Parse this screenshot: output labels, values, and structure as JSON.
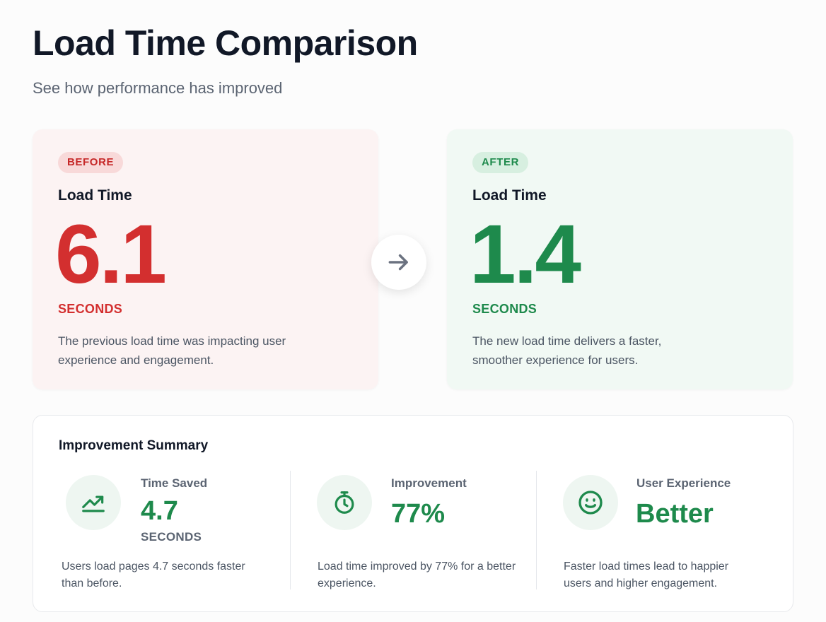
{
  "header": {
    "title": "Load Time Comparison",
    "subtitle": "See how performance has improved"
  },
  "before": {
    "badge": "BEFORE",
    "label": "Load Time",
    "value": "6.1",
    "unit": "SECONDS",
    "description": "The previous load time was impacting user experience and engagement.",
    "accent_color": "#d32f2f"
  },
  "after": {
    "badge": "AFTER",
    "label": "Load Time",
    "value": "1.4",
    "unit": "SECONDS",
    "description": "The new load time delivers a faster, smoother experience for users.",
    "accent_color": "#1e8a4c"
  },
  "transition_icon": "arrow-right-icon",
  "summary": {
    "title": "Improvement Summary",
    "metrics": [
      {
        "icon": "trending-up-icon",
        "label": "Time Saved",
        "value": "4.7",
        "unit": "SECONDS",
        "description": "Users load pages 4.7 seconds faster than before."
      },
      {
        "icon": "stopwatch-icon",
        "label": "Improvement",
        "value": "77%",
        "unit": "",
        "description": "Load time improved by 77% for a better experience."
      },
      {
        "icon": "smiley-icon",
        "label": "User Experience",
        "value": "Better",
        "unit": "",
        "description": "Faster load times lead to happier users and higher engagement."
      }
    ]
  }
}
